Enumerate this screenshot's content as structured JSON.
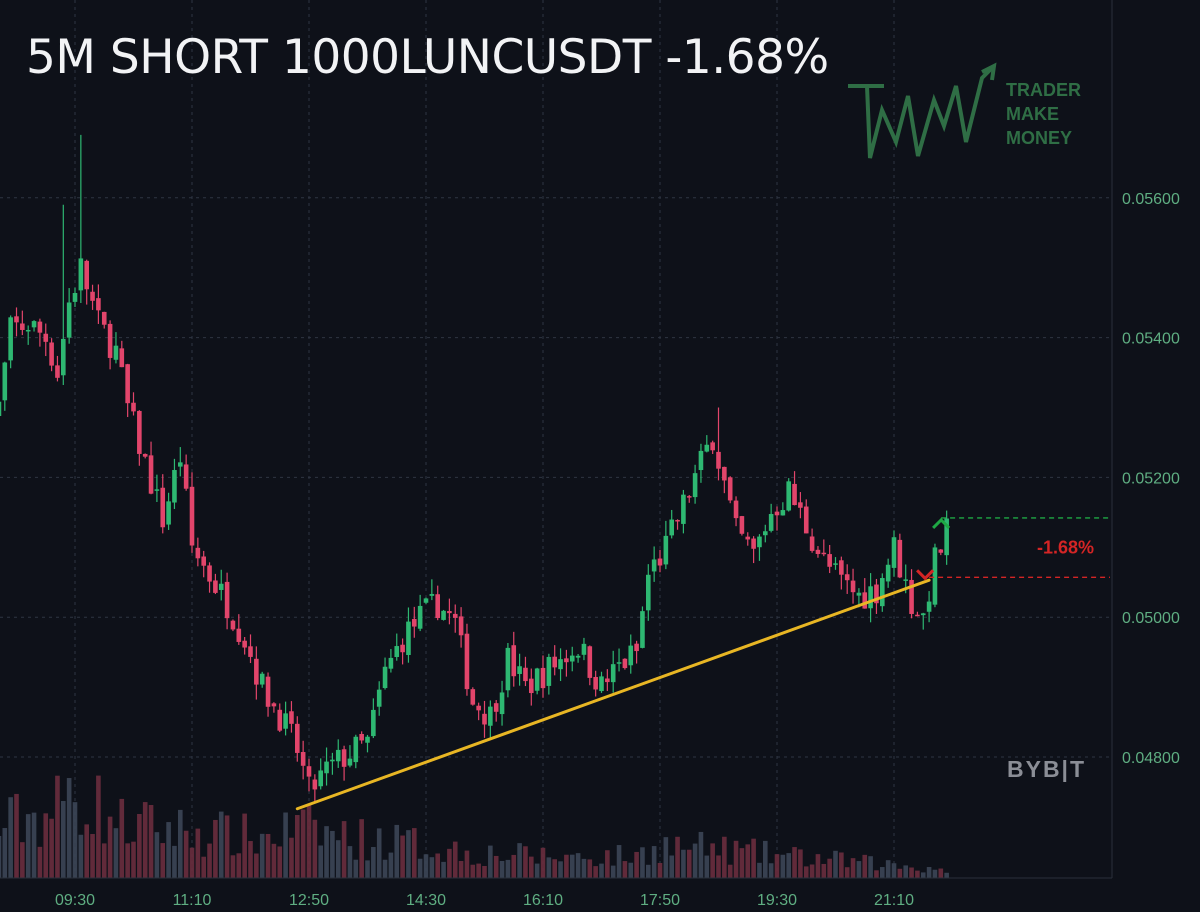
{
  "header": {
    "title": "5M SHORT 1000LUNCUSDT -1.68%"
  },
  "logo": {
    "lines": [
      "TRADER",
      "MAKE",
      "MONEY"
    ],
    "color": "#2f6e45"
  },
  "watermark": {
    "text": "BYB|T"
  },
  "colors": {
    "up": "#2eb872",
    "down": "#e2456b",
    "background": "#0e1119",
    "grid": "#2f3542",
    "trendline": "#e8b624",
    "axis_text": "#5fae82"
  },
  "chart_data": {
    "type": "candlestick",
    "title": "",
    "x_tick_labels": [
      "09:30",
      "11:10",
      "12:50",
      "14:30",
      "16:10",
      "17:50",
      "19:30",
      "21:10"
    ],
    "y_tick_labels": [
      "0.05600",
      "0.05400",
      "0.05200",
      "0.05000",
      "0.04800"
    ],
    "y_ticks": [
      0.056,
      0.054,
      0.052,
      0.05,
      0.048
    ],
    "ylim": [
      0.04655,
      0.05847
    ],
    "bar_interval_minutes": 5,
    "grid": true,
    "close_path": [
      {
        "x": "08:15",
        "y": 0.0527
      },
      {
        "x": "08:25",
        "y": 0.053
      },
      {
        "x": "08:35",
        "y": 0.0541
      },
      {
        "x": "08:50",
        "y": 0.0542
      },
      {
        "x": "09:05",
        "y": 0.054
      },
      {
        "x": "09:15",
        "y": 0.0535
      },
      {
        "x": "09:25",
        "y": 0.0545
      },
      {
        "x": "09:35",
        "y": 0.055
      },
      {
        "x": "09:50",
        "y": 0.0542
      },
      {
        "x": "10:05",
        "y": 0.0538
      },
      {
        "x": "10:15",
        "y": 0.053
      },
      {
        "x": "10:30",
        "y": 0.0522
      },
      {
        "x": "10:45",
        "y": 0.0514
      },
      {
        "x": "11:00",
        "y": 0.0523
      },
      {
        "x": "11:10",
        "y": 0.051
      },
      {
        "x": "11:25",
        "y": 0.0506
      },
      {
        "x": "11:40",
        "y": 0.0502
      },
      {
        "x": "11:55",
        "y": 0.0497
      },
      {
        "x": "12:10",
        "y": 0.049
      },
      {
        "x": "12:25",
        "y": 0.0486
      },
      {
        "x": "12:40",
        "y": 0.0481
      },
      {
        "x": "12:50",
        "y": 0.0475
      },
      {
        "x": "13:05",
        "y": 0.0478
      },
      {
        "x": "13:20",
        "y": 0.048
      },
      {
        "x": "13:40",
        "y": 0.0482
      },
      {
        "x": "13:55",
        "y": 0.0492
      },
      {
        "x": "14:10",
        "y": 0.0497
      },
      {
        "x": "14:25",
        "y": 0.05
      },
      {
        "x": "14:40",
        "y": 0.0502
      },
      {
        "x": "14:55",
        "y": 0.0499
      },
      {
        "x": "15:10",
        "y": 0.0488
      },
      {
        "x": "15:25",
        "y": 0.0486
      },
      {
        "x": "15:40",
        "y": 0.0494
      },
      {
        "x": "15:55",
        "y": 0.049
      },
      {
        "x": "16:10",
        "y": 0.0492
      },
      {
        "x": "16:25",
        "y": 0.0494
      },
      {
        "x": "16:40",
        "y": 0.0496
      },
      {
        "x": "17:00",
        "y": 0.049
      },
      {
        "x": "17:15",
        "y": 0.0493
      },
      {
        "x": "17:30",
        "y": 0.0495
      },
      {
        "x": "17:40",
        "y": 0.0506
      },
      {
        "x": "17:55",
        "y": 0.051
      },
      {
        "x": "18:10",
        "y": 0.0516
      },
      {
        "x": "18:25",
        "y": 0.0522
      },
      {
        "x": "18:35",
        "y": 0.0526
      },
      {
        "x": "18:45",
        "y": 0.0519
      },
      {
        "x": "18:55",
        "y": 0.0512
      },
      {
        "x": "19:10",
        "y": 0.0509
      },
      {
        "x": "19:25",
        "y": 0.0515
      },
      {
        "x": "19:40",
        "y": 0.0518
      },
      {
        "x": "19:55",
        "y": 0.0513
      },
      {
        "x": "20:10",
        "y": 0.0508
      },
      {
        "x": "20:25",
        "y": 0.0505
      },
      {
        "x": "20:40",
        "y": 0.0503
      },
      {
        "x": "20:55",
        "y": 0.0504
      },
      {
        "x": "21:10",
        "y": 0.051
      },
      {
        "x": "21:25",
        "y": 0.0502
      },
      {
        "x": "21:35",
        "y": 0.05
      },
      {
        "x": "21:45",
        "y": 0.0508
      },
      {
        "x": "21:55",
        "y": 0.0512
      }
    ],
    "spike_highs": [
      {
        "x": "09:20",
        "y": 0.0559
      },
      {
        "x": "09:35",
        "y": 0.0569
      },
      {
        "x": "18:40",
        "y": 0.053
      }
    ],
    "volume": {
      "ylim": [
        0,
        180
      ],
      "anchors": [
        {
          "x": "08:15",
          "y": 60
        },
        {
          "x": "08:40",
          "y": 80
        },
        {
          "x": "09:10",
          "y": 90
        },
        {
          "x": "09:30",
          "y": 120
        },
        {
          "x": "10:10",
          "y": 75
        },
        {
          "x": "11:10",
          "y": 65
        },
        {
          "x": "12:10",
          "y": 55
        },
        {
          "x": "12:40",
          "y": 70
        },
        {
          "x": "13:30",
          "y": 55
        },
        {
          "x": "14:10",
          "y": 50
        },
        {
          "x": "15:10",
          "y": 35
        },
        {
          "x": "16:10",
          "y": 30
        },
        {
          "x": "17:30",
          "y": 30
        },
        {
          "x": "17:50",
          "y": 45
        },
        {
          "x": "18:40",
          "y": 40
        },
        {
          "x": "19:40",
          "y": 30
        },
        {
          "x": "20:40",
          "y": 22
        },
        {
          "x": "21:30",
          "y": 15
        },
        {
          "x": "22:00",
          "y": 12
        }
      ]
    },
    "trendline": {
      "color": "#e8b624",
      "points": [
        {
          "x": "12:40",
          "y": 0.04726
        },
        {
          "x": "21:40",
          "y": 0.05053
        }
      ]
    },
    "position": {
      "label": "-1.68%",
      "entry": 0.05057,
      "current": 0.05142,
      "entry_color": "#d42525",
      "current_color": "#1ea844"
    }
  }
}
